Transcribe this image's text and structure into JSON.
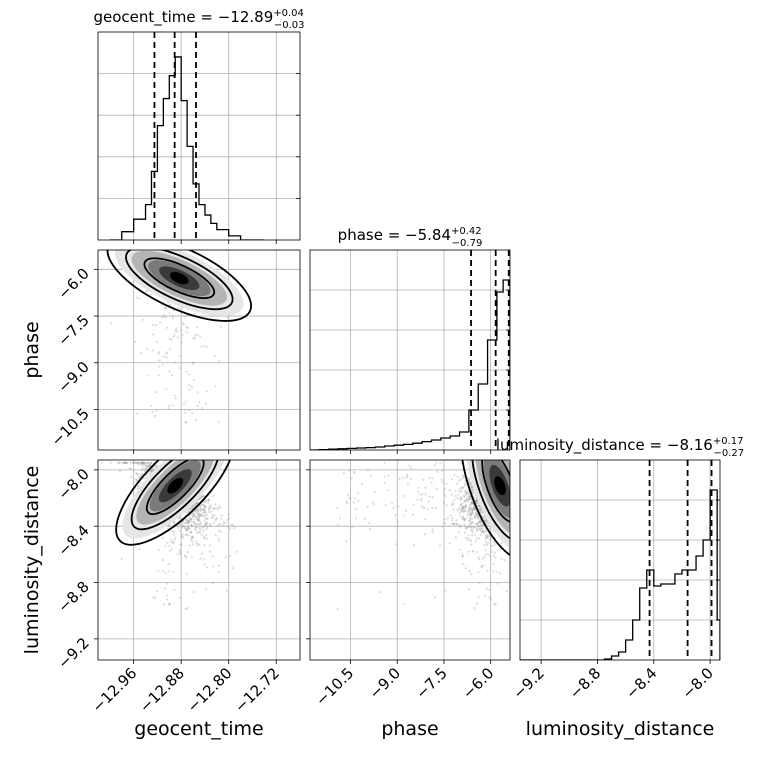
{
  "chart_data": {
    "type": "corner",
    "parameters": [
      {
        "name": "geocent_time",
        "xlabel": "geocent_time",
        "title_main": "geocent_time = −12.89",
        "title_plus": "+0.04",
        "title_minus": "−0.03",
        "median": -12.89,
        "err_plus": 0.04,
        "err_minus": 0.03,
        "range": [
          -13.02,
          -12.68
        ],
        "ticks": [
          -12.96,
          -12.88,
          -12.8,
          -12.72
        ],
        "tick_labels": [
          "−12.96",
          "−12.88",
          "−12.80",
          "−12.72"
        ],
        "quantiles": [
          -12.925,
          -12.891,
          -12.855
        ],
        "hist_bins": [
          -13.0,
          -12.98,
          -12.96,
          -12.94,
          -12.93,
          -12.92,
          -12.91,
          -12.9,
          -12.89,
          -12.88,
          -12.87,
          -12.86,
          -12.85,
          -12.84,
          -12.83,
          -12.82,
          -12.8,
          -12.78,
          -12.76,
          -12.74
        ],
        "hist_counts": [
          0.0,
          0.04,
          0.1,
          0.17,
          0.33,
          0.55,
          0.68,
          0.79,
          0.88,
          0.67,
          0.45,
          0.27,
          0.17,
          0.12,
          0.08,
          0.05,
          0.02,
          0.0,
          0.0
        ]
      },
      {
        "name": "phase",
        "xlabel": "phase",
        "ylabel": "phase",
        "title_main": "phase = −5.84",
        "title_plus": "+0.42",
        "title_minus": "−0.79",
        "median": -5.84,
        "err_plus": 0.42,
        "err_minus": 0.79,
        "range": [
          -11.8,
          -5.38
        ],
        "ticks": [
          -10.5,
          -9.0,
          -7.5,
          -6.0
        ],
        "tick_labels": [
          "−10.5",
          "−9.0",
          "−7.5",
          "−6.0"
        ],
        "quantiles": [
          -6.63,
          -5.84,
          -5.42
        ],
        "hist_bins": [
          -11.8,
          -11.5,
          -11.2,
          -10.9,
          -10.6,
          -10.3,
          -10.0,
          -9.7,
          -9.4,
          -9.1,
          -8.8,
          -8.5,
          -8.2,
          -7.9,
          -7.6,
          -7.3,
          -7.0,
          -6.7,
          -6.4,
          -6.1,
          -5.8,
          -5.6,
          -5.38
        ],
        "hist_counts": [
          0.0,
          0.002,
          0.004,
          0.006,
          0.008,
          0.01,
          0.012,
          0.015,
          0.02,
          0.024,
          0.028,
          0.034,
          0.042,
          0.05,
          0.06,
          0.07,
          0.09,
          0.2,
          0.33,
          0.55,
          0.79,
          0.85
        ]
      },
      {
        "name": "luminosity_distance",
        "xlabel": "luminosity_distance",
        "ylabel": "luminosity_distance",
        "title_main": "luminosity_distance = −8.16",
        "title_plus": "+0.17",
        "title_minus": "−0.27",
        "median": -8.16,
        "err_plus": 0.17,
        "err_minus": 0.27,
        "range": [
          -9.35,
          -7.93
        ],
        "ticks": [
          -9.2,
          -8.8,
          -8.4,
          -8.0
        ],
        "tick_labels": [
          "−9.2",
          "−8.8",
          "−8.4",
          "−8.0"
        ],
        "quantiles": [
          -8.43,
          -8.16,
          -7.99
        ],
        "hist_bins": [
          -9.35,
          -9.3,
          -9.25,
          -9.2,
          -9.15,
          -9.1,
          -9.05,
          -9.0,
          -8.95,
          -8.9,
          -8.85,
          -8.8,
          -8.75,
          -8.7,
          -8.65,
          -8.6,
          -8.55,
          -8.5,
          -8.45,
          -8.4,
          -8.35,
          -8.3,
          -8.25,
          -8.2,
          -8.15,
          -8.1,
          -8.05,
          -8.0,
          -7.95,
          -7.93
        ],
        "hist_counts": [
          0.0,
          0.0,
          0.0,
          0.0,
          0.0,
          0.0,
          0.0,
          0.0,
          0.0,
          0.0,
          0.0,
          0.0,
          0.005,
          0.02,
          0.04,
          0.1,
          0.2,
          0.36,
          0.45,
          0.37,
          0.38,
          0.38,
          0.43,
          0.45,
          0.45,
          0.52,
          0.6,
          0.85,
          0.2
        ]
      }
    ],
    "grid": true,
    "sample_colors": "#9a9a9a",
    "density_colors": [
      "#e6e6e6",
      "#b4b4b4",
      "#7a7a7a",
      "#3a3a3a",
      "#000000"
    ]
  }
}
